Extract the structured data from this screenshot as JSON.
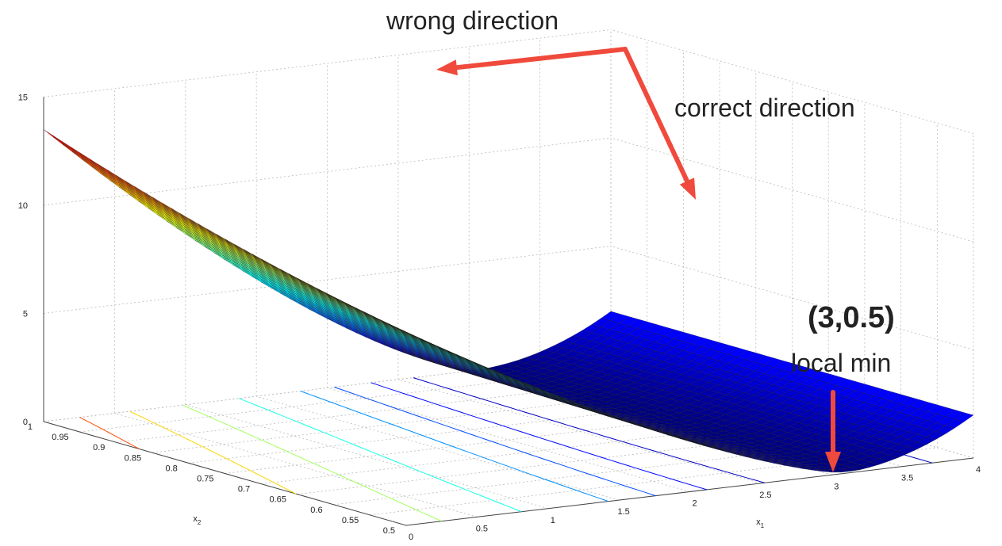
{
  "chart_data": {
    "type": "surface",
    "surface_formula": "z = (x1 - 3)^2 + 5*(x1 - 3*x2 + 1.5)^2 / ... (approximate visual fit)",
    "x1_range": [
      0,
      4
    ],
    "x2_range": [
      0.5,
      1
    ],
    "zlim": [
      0,
      15
    ],
    "x1_ticks": [
      "0",
      "0.5",
      "1",
      "1.5",
      "2",
      "2.5",
      "3",
      "3.5",
      "4"
    ],
    "x2_ticks": [
      "0.5",
      "0.55",
      "0.6",
      "0.65",
      "0.7",
      "0.75",
      "0.8",
      "0.85",
      "0.9",
      "0.95",
      "1"
    ],
    "z_ticks": [
      "0",
      "5",
      "10",
      "15"
    ],
    "x1_label": "x",
    "x1_label_sub": "1",
    "x2_label": "x",
    "x2_label_sub": "2",
    "colormap": "jet",
    "grid": true,
    "contour_levels": [
      1,
      2,
      3,
      4,
      6,
      8,
      10,
      12
    ]
  },
  "annotations": {
    "wrong_direction": "wrong direction",
    "correct_direction": "correct direction",
    "point": "(3,0.5)",
    "local_min": "local min"
  },
  "colors": {
    "arrow": "#f04a3c",
    "mesh_line": "#1a1a1a"
  }
}
